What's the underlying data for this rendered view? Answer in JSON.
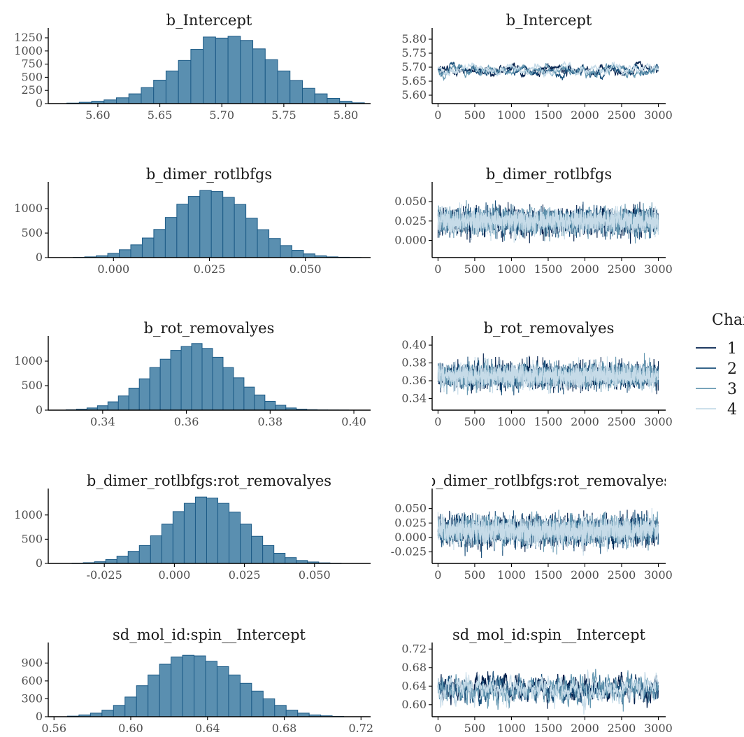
{
  "legend": {
    "title": "Chain",
    "entries": [
      {
        "label": "1",
        "color": "#011f4b"
      },
      {
        "label": "2",
        "color": "#1a4f7a"
      },
      {
        "label": "3",
        "color": "#6497b1"
      },
      {
        "label": "4",
        "color": "#c6dbe8"
      }
    ]
  },
  "chart_data": [
    {
      "type": "bar",
      "panel": "histogram",
      "title": "b_Intercept",
      "xlim": [
        5.56,
        5.82
      ],
      "ylim": [
        0,
        1330
      ],
      "xticks": [
        "5.60",
        "5.65",
        "5.70",
        "5.75",
        "5.80"
      ],
      "yticks": [
        "0",
        "250",
        "500",
        "750",
        "1000",
        "1250"
      ],
      "bins": [
        5.58,
        5.59,
        5.6,
        5.61,
        5.62,
        5.63,
        5.64,
        5.65,
        5.66,
        5.67,
        5.68,
        5.69,
        5.7,
        5.71,
        5.72,
        5.73,
        5.74,
        5.75,
        5.76,
        5.77,
        5.78,
        5.79,
        5.8,
        5.81
      ],
      "counts": [
        10,
        25,
        45,
        70,
        110,
        185,
        305,
        445,
        620,
        820,
        1030,
        1265,
        1245,
        1280,
        1200,
        1040,
        835,
        620,
        440,
        290,
        185,
        100,
        45,
        15
      ]
    },
    {
      "type": "line",
      "panel": "trace",
      "title": "b_Intercept",
      "xlim": [
        -80,
        3100
      ],
      "ylim": [
        5.57,
        5.82
      ],
      "xticks": [
        "0",
        "500",
        "1000",
        "1500",
        "2000",
        "2500",
        "3000"
      ],
      "yticks": [
        "5.60",
        "5.65",
        "5.70",
        "5.75",
        "5.80"
      ],
      "iterations": 3000,
      "center": 5.69,
      "spread": 0.045,
      "smooth": 0.96
    },
    {
      "type": "bar",
      "panel": "histogram",
      "title": "b_dimer_rotlbfgs",
      "xlim": [
        -0.017,
        0.067
      ],
      "ylim": [
        0,
        1430
      ],
      "xticks": [
        "0.000",
        "0.025",
        "0.050"
      ],
      "yticks": [
        "0",
        "500",
        "1000"
      ],
      "bins": [
        -0.009,
        -0.006,
        -0.003,
        0.0,
        0.003,
        0.006,
        0.009,
        0.012,
        0.015,
        0.018,
        0.021,
        0.024,
        0.027,
        0.03,
        0.033,
        0.036,
        0.039,
        0.042,
        0.045,
        0.048,
        0.051,
        0.054,
        0.057,
        0.06,
        0.063
      ],
      "counts": [
        5,
        15,
        35,
        85,
        160,
        260,
        400,
        575,
        820,
        1090,
        1250,
        1370,
        1350,
        1230,
        1085,
        805,
        570,
        390,
        245,
        150,
        75,
        35,
        15,
        8,
        3
      ]
    },
    {
      "type": "line",
      "panel": "trace",
      "title": "b_dimer_rotlbfgs",
      "xlim": [
        -80,
        3100
      ],
      "ylim": [
        -0.022,
        0.068
      ],
      "xticks": [
        "0",
        "500",
        "1000",
        "1500",
        "2000",
        "2500",
        "3000"
      ],
      "yticks": [
        "0.000",
        "0.025",
        "0.050"
      ],
      "iterations": 3000,
      "center": 0.025,
      "spread": 0.034,
      "smooth": 0.0
    },
    {
      "type": "bar",
      "panel": "histogram",
      "title": "b_rot_removalyes",
      "xlim": [
        0.327,
        0.404
      ],
      "ylim": [
        0,
        1400
      ],
      "xticks": [
        "0.34",
        "0.36",
        "0.38",
        "0.40"
      ],
      "yticks": [
        "0",
        "500",
        "1000"
      ],
      "bins": [
        0.3325,
        0.335,
        0.3375,
        0.34,
        0.3425,
        0.345,
        0.3475,
        0.35,
        0.3525,
        0.355,
        0.3575,
        0.36,
        0.3625,
        0.365,
        0.3675,
        0.37,
        0.3725,
        0.375,
        0.3775,
        0.38,
        0.3825,
        0.385,
        0.3875,
        0.39,
        0.3925,
        0.395,
        0.3975
      ],
      "counts": [
        8,
        20,
        45,
        90,
        170,
        290,
        450,
        640,
        870,
        1040,
        1220,
        1300,
        1360,
        1260,
        1080,
        870,
        660,
        470,
        310,
        180,
        100,
        45,
        20,
        10,
        5,
        3,
        2
      ]
    },
    {
      "type": "line",
      "panel": "trace",
      "title": "b_rot_removalyes",
      "xlim": [
        -80,
        3100
      ],
      "ylim": [
        0.327,
        0.404
      ],
      "xticks": [
        "0",
        "500",
        "1000",
        "1500",
        "2000",
        "2500",
        "3000"
      ],
      "yticks": [
        "0.34",
        "0.36",
        "0.38",
        "0.40"
      ],
      "iterations": 3000,
      "center": 0.3655,
      "spread": 0.028,
      "smooth": 0.0
    },
    {
      "type": "bar",
      "panel": "histogram",
      "title": "b_dimer_rotlbfgs:rot_removalyes",
      "xlim": [
        -0.045,
        0.07
      ],
      "ylim": [
        0,
        1430
      ],
      "xticks": [
        "-0.025",
        "0.000",
        "0.025",
        "0.050"
      ],
      "yticks": [
        "0",
        "500",
        "1000"
      ],
      "bins": [
        -0.0345,
        -0.0305,
        -0.0265,
        -0.0225,
        -0.0185,
        -0.0145,
        -0.0105,
        -0.0065,
        -0.0025,
        0.0015,
        0.0055,
        0.0095,
        0.0135,
        0.0175,
        0.0215,
        0.0255,
        0.0295,
        0.0335,
        0.0375,
        0.0415,
        0.0455,
        0.0495,
        0.0535,
        0.0575
      ],
      "counts": [
        5,
        15,
        35,
        80,
        150,
        250,
        370,
        570,
        810,
        1070,
        1240,
        1370,
        1350,
        1240,
        1060,
        810,
        560,
        370,
        210,
        120,
        60,
        30,
        12,
        5
      ]
    },
    {
      "type": "line",
      "panel": "trace",
      "title": "b_dimer_rotlbfgs:rot_removalyes",
      "xlim": [
        -80,
        3100
      ],
      "ylim": [
        -0.045,
        0.075
      ],
      "xticks": [
        "0",
        "500",
        "1000",
        "1500",
        "2000",
        "2500",
        "3000"
      ],
      "yticks": [
        "-0.025",
        "0.000",
        "0.025",
        "0.050"
      ],
      "iterations": 3000,
      "center": 0.012,
      "spread": 0.05,
      "smooth": 0.0
    },
    {
      "type": "bar",
      "panel": "histogram",
      "title": "sd_mol_id:spin__Intercept",
      "xlim": [
        0.557,
        0.725
      ],
      "ylim": [
        0,
        1150
      ],
      "xticks": [
        "0.56",
        "0.60",
        "0.64",
        "0.68",
        "0.72"
      ],
      "yticks": [
        "0",
        "300",
        "600",
        "900"
      ],
      "bins": [
        0.57,
        0.576,
        0.582,
        0.588,
        0.594,
        0.6,
        0.606,
        0.612,
        0.618,
        0.624,
        0.63,
        0.636,
        0.642,
        0.648,
        0.654,
        0.66,
        0.666,
        0.672,
        0.678,
        0.684,
        0.69,
        0.696,
        0.702,
        0.708
      ],
      "counts": [
        10,
        30,
        60,
        110,
        190,
        330,
        520,
        700,
        880,
        1000,
        1030,
        1020,
        930,
        840,
        700,
        560,
        430,
        300,
        190,
        110,
        60,
        30,
        15,
        5
      ]
    },
    {
      "type": "line",
      "panel": "trace",
      "title": "sd_mol_id:spin__Intercept",
      "xlim": [
        -80,
        3100
      ],
      "ylim": [
        0.574,
        0.722
      ],
      "xticks": [
        "0",
        "500",
        "1000",
        "1500",
        "2000",
        "2500",
        "3000"
      ],
      "yticks": [
        "0.60",
        "0.64",
        "0.68",
        "0.72"
      ],
      "iterations": 3000,
      "center": 0.633,
      "spread": 0.062,
      "smooth": 0.88
    }
  ]
}
